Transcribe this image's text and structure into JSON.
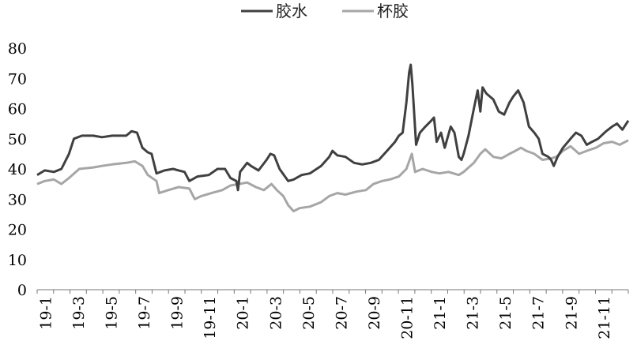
{
  "chart_data": {
    "type": "line",
    "title": "",
    "xlabel": "",
    "ylabel": "",
    "ylim": [
      0,
      80
    ],
    "yticks": [
      0,
      10,
      20,
      30,
      40,
      50,
      60,
      70,
      80
    ],
    "x_tick_labels": [
      "19-1",
      "19-3",
      "19-5",
      "19-7",
      "19-9",
      "19-11",
      "20-1",
      "20-3",
      "20-5",
      "20-7",
      "20-9",
      "20-11",
      "21-1",
      "21-3",
      "21-5",
      "21-7",
      "21-9",
      "21-11"
    ],
    "x_range_months": [
      "2019-01",
      "2021-12"
    ],
    "grid": false,
    "legend_position": "top-center",
    "series": [
      {
        "name": "胶水",
        "color": "#404040",
        "points": [
          [
            "2019-01-01",
            38
          ],
          [
            "2019-01-15",
            39.5
          ],
          [
            "2019-02-01",
            39
          ],
          [
            "2019-02-15",
            40
          ],
          [
            "2019-03-01",
            45
          ],
          [
            "2019-03-10",
            50
          ],
          [
            "2019-03-25",
            51
          ],
          [
            "2019-04-15",
            51
          ],
          [
            "2019-05-01",
            50.5
          ],
          [
            "2019-05-20",
            51
          ],
          [
            "2019-06-15",
            51
          ],
          [
            "2019-06-25",
            52.5
          ],
          [
            "2019-07-05",
            52
          ],
          [
            "2019-07-15",
            47
          ],
          [
            "2019-07-25",
            45.5
          ],
          [
            "2019-08-01",
            45
          ],
          [
            "2019-08-10",
            38.5
          ],
          [
            "2019-08-25",
            39.5
          ],
          [
            "2019-09-10",
            40
          ],
          [
            "2019-09-20",
            39.5
          ],
          [
            "2019-10-01",
            39
          ],
          [
            "2019-10-10",
            36
          ],
          [
            "2019-10-25",
            37.5
          ],
          [
            "2019-11-15",
            38
          ],
          [
            "2019-12-01",
            40
          ],
          [
            "2019-12-15",
            40
          ],
          [
            "2019-12-25",
            37
          ],
          [
            "2020-01-05",
            36
          ],
          [
            "2020-01-08",
            33
          ],
          [
            "2020-01-12",
            39
          ],
          [
            "2020-01-25",
            42
          ],
          [
            "2020-02-01",
            41
          ],
          [
            "2020-02-15",
            39.5
          ],
          [
            "2020-03-01",
            43
          ],
          [
            "2020-03-08",
            45
          ],
          [
            "2020-03-15",
            44.5
          ],
          [
            "2020-03-25",
            40
          ],
          [
            "2020-04-10",
            36
          ],
          [
            "2020-04-20",
            36.5
          ],
          [
            "2020-05-05",
            38
          ],
          [
            "2020-05-20",
            38.5
          ],
          [
            "2020-06-10",
            41
          ],
          [
            "2020-06-25",
            44
          ],
          [
            "2020-07-01",
            46
          ],
          [
            "2020-07-10",
            44.5
          ],
          [
            "2020-07-25",
            44
          ],
          [
            "2020-08-10",
            42
          ],
          [
            "2020-08-25",
            41.5
          ],
          [
            "2020-09-10",
            42
          ],
          [
            "2020-09-25",
            43
          ],
          [
            "2020-10-10",
            46
          ],
          [
            "2020-10-25",
            49
          ],
          [
            "2020-11-01",
            51
          ],
          [
            "2020-11-08",
            52
          ],
          [
            "2020-11-15",
            62
          ],
          [
            "2020-11-20",
            72
          ],
          [
            "2020-11-23",
            74.5
          ],
          [
            "2020-11-26",
            68
          ],
          [
            "2020-12-03",
            48
          ],
          [
            "2020-12-10",
            52
          ],
          [
            "2020-12-20",
            54
          ],
          [
            "2020-12-31",
            56
          ],
          [
            "2021-01-05",
            57
          ],
          [
            "2021-01-10",
            49
          ],
          [
            "2021-01-18",
            52
          ],
          [
            "2021-01-25",
            47
          ],
          [
            "2021-02-05",
            54
          ],
          [
            "2021-02-12",
            52
          ],
          [
            "2021-02-20",
            44
          ],
          [
            "2021-02-25",
            43
          ],
          [
            "2021-03-01",
            45
          ],
          [
            "2021-03-10",
            51
          ],
          [
            "2021-03-20",
            60
          ],
          [
            "2021-03-27",
            66
          ],
          [
            "2021-04-01",
            59
          ],
          [
            "2021-04-05",
            67
          ],
          [
            "2021-04-12",
            65
          ],
          [
            "2021-04-25",
            63
          ],
          [
            "2021-05-05",
            59
          ],
          [
            "2021-05-15",
            58
          ],
          [
            "2021-05-25",
            62
          ],
          [
            "2021-06-01",
            64
          ],
          [
            "2021-06-10",
            66
          ],
          [
            "2021-06-20",
            62
          ],
          [
            "2021-06-30",
            54
          ],
          [
            "2021-07-10",
            52
          ],
          [
            "2021-07-18",
            50
          ],
          [
            "2021-07-25",
            45
          ],
          [
            "2021-08-05",
            44
          ],
          [
            "2021-08-10",
            43
          ],
          [
            "2021-08-15",
            41
          ],
          [
            "2021-08-22",
            44
          ],
          [
            "2021-09-01",
            47
          ],
          [
            "2021-09-15",
            50
          ],
          [
            "2021-09-25",
            52
          ],
          [
            "2021-10-05",
            51
          ],
          [
            "2021-10-15",
            48
          ],
          [
            "2021-10-25",
            49
          ],
          [
            "2021-11-05",
            50
          ],
          [
            "2021-11-20",
            52.5
          ],
          [
            "2021-12-01",
            54
          ],
          [
            "2021-12-10",
            55
          ],
          [
            "2021-12-20",
            53
          ],
          [
            "2021-12-31",
            56
          ]
        ]
      },
      {
        "name": "杯胶",
        "color": "#a6a6a6",
        "points": [
          [
            "2019-01-01",
            35
          ],
          [
            "2019-01-15",
            36
          ],
          [
            "2019-02-01",
            36.5
          ],
          [
            "2019-02-15",
            35
          ],
          [
            "2019-03-01",
            37
          ],
          [
            "2019-03-20",
            40
          ],
          [
            "2019-04-15",
            40.5
          ],
          [
            "2019-05-01",
            41
          ],
          [
            "2019-05-20",
            41.5
          ],
          [
            "2019-06-15",
            42
          ],
          [
            "2019-07-01",
            42.5
          ],
          [
            "2019-07-15",
            41
          ],
          [
            "2019-07-25",
            38
          ],
          [
            "2019-08-10",
            36
          ],
          [
            "2019-08-15",
            32
          ],
          [
            "2019-09-01",
            33
          ],
          [
            "2019-09-20",
            34
          ],
          [
            "2019-10-10",
            33.5
          ],
          [
            "2019-10-20",
            30
          ],
          [
            "2019-11-01",
            31
          ],
          [
            "2019-11-20",
            32
          ],
          [
            "2019-12-10",
            33
          ],
          [
            "2019-12-25",
            34.5
          ],
          [
            "2020-01-10",
            35
          ],
          [
            "2020-01-25",
            35.5
          ],
          [
            "2020-02-10",
            34
          ],
          [
            "2020-02-25",
            33
          ],
          [
            "2020-03-10",
            35
          ],
          [
            "2020-03-20",
            33
          ],
          [
            "2020-04-01",
            31
          ],
          [
            "2020-04-10",
            28
          ],
          [
            "2020-04-20",
            26
          ],
          [
            "2020-05-01",
            27
          ],
          [
            "2020-05-20",
            27.5
          ],
          [
            "2020-06-10",
            29
          ],
          [
            "2020-06-25",
            31
          ],
          [
            "2020-07-10",
            32
          ],
          [
            "2020-07-25",
            31.5
          ],
          [
            "2020-08-15",
            32.5
          ],
          [
            "2020-09-01",
            33
          ],
          [
            "2020-09-15",
            35
          ],
          [
            "2020-10-01",
            36
          ],
          [
            "2020-10-15",
            36.5
          ],
          [
            "2020-11-01",
            37.5
          ],
          [
            "2020-11-15",
            40
          ],
          [
            "2020-11-25",
            45
          ],
          [
            "2020-12-01",
            39
          ],
          [
            "2020-12-15",
            40
          ],
          [
            "2021-01-01",
            39
          ],
          [
            "2021-01-15",
            38.5
          ],
          [
            "2021-02-01",
            39
          ],
          [
            "2021-02-20",
            38
          ],
          [
            "2021-03-01",
            39
          ],
          [
            "2021-03-20",
            42
          ],
          [
            "2021-04-01",
            45
          ],
          [
            "2021-04-10",
            46.5
          ],
          [
            "2021-04-25",
            44
          ],
          [
            "2021-05-10",
            43.5
          ],
          [
            "2021-05-25",
            45
          ],
          [
            "2021-06-05",
            46
          ],
          [
            "2021-06-15",
            47
          ],
          [
            "2021-06-25",
            46
          ],
          [
            "2021-07-10",
            45
          ],
          [
            "2021-07-25",
            43
          ],
          [
            "2021-08-10",
            43.5
          ],
          [
            "2021-08-20",
            44
          ],
          [
            "2021-09-01",
            46
          ],
          [
            "2021-09-15",
            47.5
          ],
          [
            "2021-10-01",
            45
          ],
          [
            "2021-10-15",
            46
          ],
          [
            "2021-11-01",
            47
          ],
          [
            "2021-11-15",
            48.5
          ],
          [
            "2021-12-01",
            49
          ],
          [
            "2021-12-15",
            48
          ],
          [
            "2021-12-31",
            49.5
          ]
        ]
      }
    ]
  }
}
